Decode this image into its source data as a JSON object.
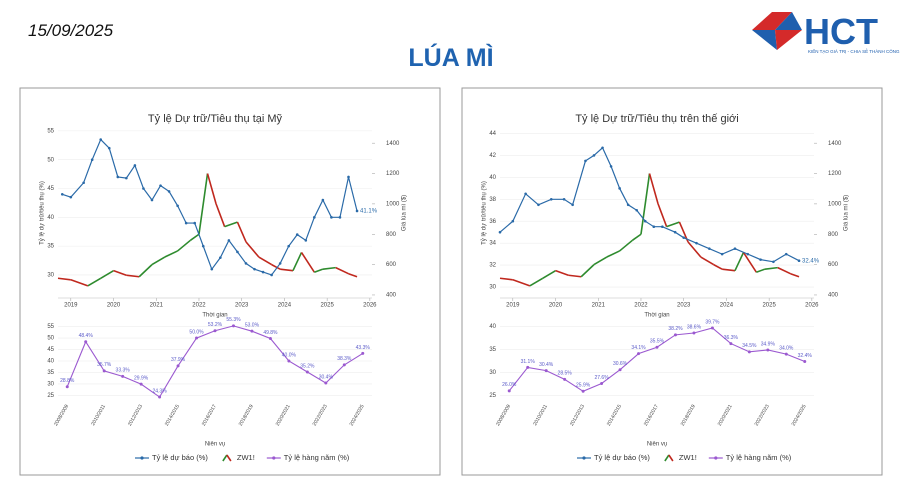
{
  "header": {
    "date": "15/09/2025",
    "title": "LÚA MÌ",
    "logo": "HCT",
    "tagline": "KIẾN TẠO GIÁ TRỊ - CHIA SẺ THÀNH CÔNG"
  },
  "chart_data": [
    {
      "type": "line",
      "title": "Tỷ lệ Dự trữ/Tiêu thụ tại Mỹ",
      "x_label": "Thời gian",
      "y_label": "Tỷ lệ dự trữ/tiêu thụ (%)",
      "y2_label": "Giá lúa mì ($)",
      "xlim": [
        2018.7,
        2026.05
      ],
      "xticks": [
        2019,
        2020,
        2021,
        2022,
        2023,
        2024,
        2025,
        2026
      ],
      "ylim": [
        26,
        55.5
      ],
      "yticks": [
        30,
        35,
        40,
        45,
        50,
        55
      ],
      "y2lim": [
        380,
        1500
      ],
      "y2ticks": [
        400,
        600,
        800,
        1000,
        1200,
        1400
      ],
      "series": [
        {
          "name": "Tỷ lệ dự báo (%)",
          "color": "#2a6aa8",
          "x": [
            2018.8,
            2019.0,
            2019.3,
            2019.5,
            2019.7,
            2019.9,
            2020.1,
            2020.3,
            2020.5,
            2020.7,
            2020.9,
            2021.1,
            2021.3,
            2021.5,
            2021.7,
            2021.9,
            2022.1,
            2022.3,
            2022.5,
            2022.7,
            2022.9,
            2023.1,
            2023.3,
            2023.5,
            2023.7,
            2023.9,
            2024.1,
            2024.3,
            2024.5,
            2024.7,
            2024.9,
            2025.1,
            2025.3,
            2025.5,
            2025.7
          ],
          "values": [
            44,
            43.5,
            46,
            50,
            53.5,
            52,
            47,
            46.8,
            49,
            45,
            43,
            45.5,
            44.5,
            42,
            39,
            39,
            35,
            31,
            33,
            36,
            34,
            32,
            31,
            30.5,
            30,
            32,
            35,
            37,
            36,
            40,
            43,
            40,
            40,
            47,
            41.1
          ],
          "value_labels": [
            null,
            null,
            null,
            null,
            null,
            null,
            null,
            null,
            null,
            null,
            null,
            null,
            null,
            null,
            null,
            null,
            null,
            null,
            null,
            null,
            null,
            null,
            null,
            null,
            null,
            null,
            null,
            null,
            null,
            null,
            null,
            null,
            null,
            null,
            "41.1%"
          ]
        },
        {
          "name": "ZW1!",
          "axis": "y2",
          "color": "#c0281e",
          "color_up": "#2e8b2e",
          "x": [
            2018.7,
            2019.0,
            2019.4,
            2019.7,
            2020.0,
            2020.3,
            2020.6,
            2020.9,
            2021.2,
            2021.5,
            2021.8,
            2022.0,
            2022.2,
            2022.4,
            2022.6,
            2022.9,
            2023.1,
            2023.4,
            2023.7,
            2023.9,
            2024.2,
            2024.4,
            2024.7,
            2024.9,
            2025.2,
            2025.5,
            2025.7
          ],
          "values": [
            510,
            500,
            460,
            510,
            560,
            530,
            520,
            600,
            650,
            690,
            760,
            800,
            1200,
            1000,
            850,
            880,
            750,
            650,
            600,
            570,
            560,
            680,
            550,
            570,
            580,
            540,
            520
          ]
        }
      ]
    },
    {
      "type": "line",
      "x_label": "Niên vụ",
      "categories": [
        "2008/2009",
        null,
        "2010/2011",
        null,
        "2012/2013",
        null,
        "2014/2015",
        null,
        "2016/2017",
        null,
        "2018/2019",
        null,
        "2020/2021",
        null,
        "2022/2023",
        null,
        "2024/2025"
      ],
      "ylim": [
        23,
        57
      ],
      "yticks": [
        25,
        30,
        35,
        40,
        45,
        50,
        55
      ],
      "series": [
        {
          "name": "Tỷ lệ hàng năm (%)",
          "color": "#9b59d0",
          "values": [
            28.8,
            48.4,
            35.7,
            33.3,
            29.9,
            24.3,
            37.9,
            50.0,
            53.2,
            55.3,
            53.0,
            49.8,
            40.0,
            35.2,
            30.4,
            38.3,
            43.3
          ],
          "value_labels": [
            "28.8%",
            "48.4%",
            "35.7%",
            "33.3%",
            "29.9%",
            "24.3%",
            "37.9%",
            "50.0%",
            "53.2%",
            "55.3%",
            "53.0%",
            "49.8%",
            "40.0%",
            "35.2%",
            "30.4%",
            "38.3%",
            "43.3%"
          ]
        }
      ]
    },
    {
      "type": "line",
      "title": "Tỷ lệ Dự trữ/Tiêu thụ trên thế giới",
      "x_label": "Thời gian",
      "y_label": "Tỷ lệ dự trữ/tiêu thụ (%)",
      "y2_label": "Giá lúa mì ($)",
      "xlim": [
        2018.7,
        2026.05
      ],
      "xticks": [
        2019,
        2020,
        2021,
        2022,
        2023,
        2024,
        2025,
        2026
      ],
      "ylim": [
        29,
        44.5
      ],
      "yticks": [
        30,
        32,
        34,
        36,
        38,
        40,
        42,
        44
      ],
      "y2lim": [
        380,
        1500
      ],
      "y2ticks": [
        400,
        600,
        800,
        1000,
        1200,
        1400
      ],
      "series": [
        {
          "name": "Tỷ lệ dự báo (%)",
          "color": "#2a6aa8",
          "x": [
            2018.7,
            2019.0,
            2019.3,
            2019.6,
            2019.9,
            2020.2,
            2020.4,
            2020.7,
            2020.9,
            2021.1,
            2021.3,
            2021.5,
            2021.7,
            2021.9,
            2022.1,
            2022.3,
            2022.5,
            2022.8,
            2023.0,
            2023.3,
            2023.6,
            2023.9,
            2024.2,
            2024.5,
            2024.8,
            2025.1,
            2025.4,
            2025.7
          ],
          "values": [
            35,
            36,
            38.5,
            37.5,
            38,
            38,
            37.5,
            41.5,
            42,
            42.7,
            41,
            39,
            37.5,
            37,
            36,
            35.5,
            35.5,
            35,
            34.5,
            34,
            33.5,
            33,
            33.5,
            33,
            32.5,
            32.3,
            33,
            32.4
          ],
          "value_labels": [
            null,
            null,
            null,
            null,
            null,
            null,
            null,
            null,
            null,
            null,
            null,
            null,
            null,
            null,
            null,
            null,
            null,
            null,
            null,
            null,
            null,
            null,
            null,
            null,
            null,
            null,
            null,
            "32.4%"
          ]
        },
        {
          "name": "ZW1!",
          "axis": "y2",
          "color": "#c0281e",
          "color_up": "#2e8b2e",
          "x": [
            2018.7,
            2019.0,
            2019.4,
            2019.7,
            2020.0,
            2020.3,
            2020.6,
            2020.9,
            2021.2,
            2021.5,
            2021.8,
            2022.0,
            2022.2,
            2022.4,
            2022.6,
            2022.9,
            2023.1,
            2023.4,
            2023.7,
            2023.9,
            2024.2,
            2024.4,
            2024.7,
            2024.9,
            2025.2,
            2025.5,
            2025.7
          ],
          "values": [
            510,
            500,
            460,
            510,
            560,
            530,
            520,
            600,
            650,
            690,
            760,
            800,
            1200,
            1000,
            850,
            880,
            750,
            650,
            600,
            570,
            560,
            680,
            550,
            570,
            580,
            540,
            520
          ]
        }
      ]
    },
    {
      "type": "line",
      "x_label": "Niên vụ",
      "categories": [
        "2008/2009",
        null,
        "2010/2011",
        null,
        "2012/2013",
        null,
        "2014/2015",
        null,
        "2016/2017",
        null,
        "2018/2019",
        null,
        "2020/2021",
        null,
        "2022/2023",
        null,
        "2024/2025"
      ],
      "ylim": [
        24,
        41
      ],
      "yticks": [
        25,
        30,
        35,
        40
      ],
      "series": [
        {
          "name": "Tỷ lệ hàng năm (%)",
          "color": "#9b59d0",
          "values": [
            26.0,
            31.1,
            30.4,
            28.5,
            25.9,
            27.6,
            30.6,
            34.1,
            35.5,
            38.2,
            38.6,
            39.7,
            36.3,
            34.5,
            34.9,
            34.0,
            32.4
          ],
          "value_labels": [
            "26.0%",
            "31.1%",
            "30.4%",
            "28.5%",
            "25.9%",
            "27.6%",
            "30.6%",
            "34.1%",
            "35.5%",
            "38.2%",
            "38.6%",
            "39.7%",
            "36.3%",
            "34.5%",
            "34.9%",
            "34.0%",
            "32.4%"
          ]
        }
      ]
    }
  ]
}
